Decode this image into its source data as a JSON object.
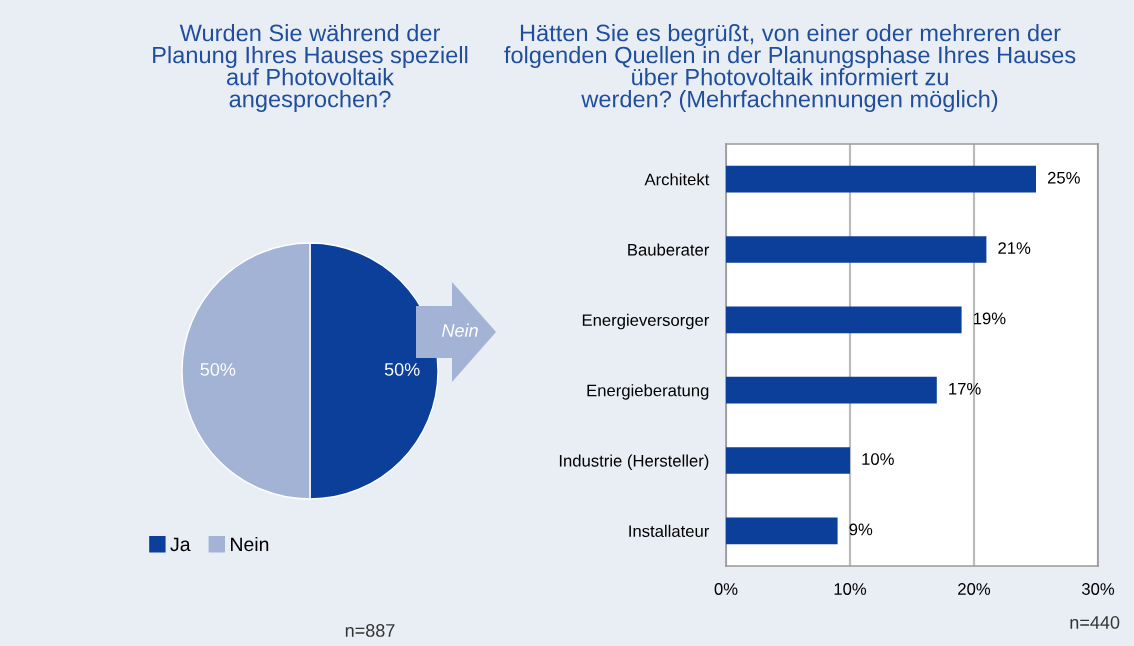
{
  "chart_data": [
    {
      "type": "pie",
      "title": "Wurden Sie während der\nPlanung Ihres Hauses speziell\nauf Photovoltaik\nangesprochen?",
      "categories": [
        "Ja",
        "Nein"
      ],
      "values": [
        50,
        50
      ],
      "value_labels": [
        "50%",
        "50%"
      ],
      "colors": [
        "#0b3f9a",
        "#a3b3d6"
      ],
      "legend": "bottom",
      "annotations": [
        "n=887",
        "Nein"
      ]
    },
    {
      "type": "bar",
      "orientation": "horizontal",
      "title": "Hätten Sie es begrüßt, von einer oder mehreren der\nfolgenden Quellen in der Planungsphase Ihres Hauses\nüber Photovoltaik informiert zu\nwerden? (Mehrfachnennungen möglich)",
      "categories": [
        "Architekt",
        "Bauberater",
        "Energieversorger",
        "Energieberatung",
        "Industrie (Hersteller)",
        "Installateur"
      ],
      "values": [
        25,
        21,
        19,
        17,
        10,
        9
      ],
      "value_labels": [
        "25%",
        "21%",
        "19%",
        "17%",
        "10%",
        "9%"
      ],
      "color": "#0b3f9a",
      "xlim": [
        0,
        30
      ],
      "xticks": [
        {
          "value": 0,
          "label": "0%"
        },
        {
          "value": 10,
          "label": "10%"
        },
        {
          "value": 20,
          "label": "20%"
        },
        {
          "value": 30,
          "label": "30%"
        }
      ],
      "grid": "x",
      "annotations": [
        "n=440"
      ]
    }
  ]
}
